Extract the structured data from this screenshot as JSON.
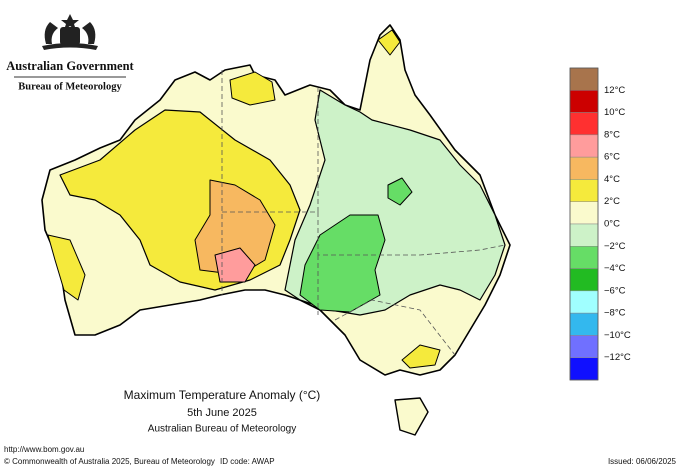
{
  "header": {
    "government": "Australian Government",
    "agency": "Bureau of Meteorology"
  },
  "legend": {
    "labels": [
      "12°C",
      "10°C",
      "8°C",
      "6°C",
      "4°C",
      "2°C",
      "0°C",
      "−2°C",
      "−4°C",
      "−6°C",
      "−8°C",
      "−10°C",
      "−12°C"
    ],
    "colors": [
      "#a8744c",
      "#cc0000",
      "#ff3030",
      "#ff9c9c",
      "#f7b860",
      "#f5ea3c",
      "#fafacd",
      "#cdf2c8",
      "#66dd66",
      "#22bb22",
      "#a0ffff",
      "#33b8ee",
      "#7070ff",
      "#1010ff"
    ]
  },
  "map_title": {
    "title": "Maximum Temperature Anomaly (°C)",
    "date": "5th June 2025",
    "source": "Australian Bureau of Meteorology"
  },
  "footer": {
    "url": "http://www.bom.gov.au",
    "copyright": "© Commonwealth of Australia 2025, Bureau of Meteorology",
    "id_code": "ID code: AWAP",
    "issued": "Issued: 06/06/2025"
  }
}
